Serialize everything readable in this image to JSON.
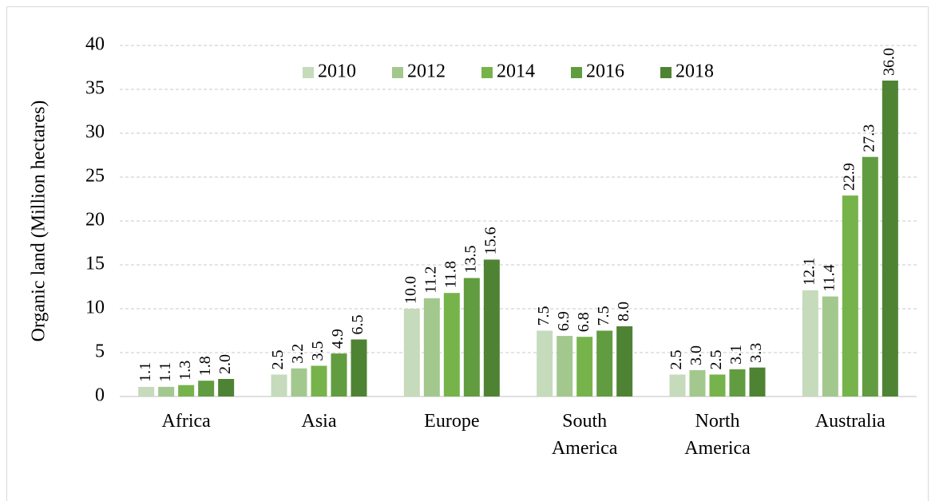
{
  "chart_data": {
    "type": "bar",
    "ylabel": "Organic land (Million hectares)",
    "categories": [
      "Africa",
      "Asia",
      "Europe",
      "South America",
      "North America",
      "Australia"
    ],
    "series": [
      {
        "name": "2010",
        "color": "#c5dbbc",
        "values": [
          1.1,
          2.5,
          10.0,
          7.5,
          2.5,
          12.1
        ],
        "value_labels": [
          "1.1",
          "2.5",
          "10.0",
          "7.5",
          "2.5",
          "12.1"
        ]
      },
      {
        "name": "2012",
        "color": "#a3c88e",
        "values": [
          1.1,
          3.2,
          11.2,
          6.9,
          3.0,
          11.4
        ],
        "value_labels": [
          "1.1",
          "3.2",
          "11.2",
          "6.9",
          "3.0",
          "11.4"
        ]
      },
      {
        "name": "2014",
        "color": "#77b34b",
        "values": [
          1.3,
          3.5,
          11.8,
          6.8,
          2.5,
          22.9
        ],
        "value_labels": [
          "1.3",
          "3.5",
          "11.8",
          "6.8",
          "2.5",
          "22.9"
        ]
      },
      {
        "name": "2016",
        "color": "#619c40",
        "values": [
          1.8,
          4.9,
          13.5,
          7.5,
          3.1,
          27.3
        ],
        "value_labels": [
          "1.8",
          "4.9",
          "13.5",
          "7.5",
          "3.1",
          "27.3"
        ]
      },
      {
        "name": "2018",
        "color": "#4f8334",
        "values": [
          2.0,
          6.5,
          15.6,
          8.0,
          3.3,
          36.0
        ],
        "value_labels": [
          "2.0",
          "6.5",
          "15.6",
          "8.0",
          "3.3",
          "36.0"
        ]
      }
    ],
    "ylim": [
      0,
      40
    ],
    "yticks": [
      0,
      5,
      10,
      15,
      20,
      25,
      30,
      35,
      40
    ],
    "grid": true,
    "legend": "upper center"
  }
}
